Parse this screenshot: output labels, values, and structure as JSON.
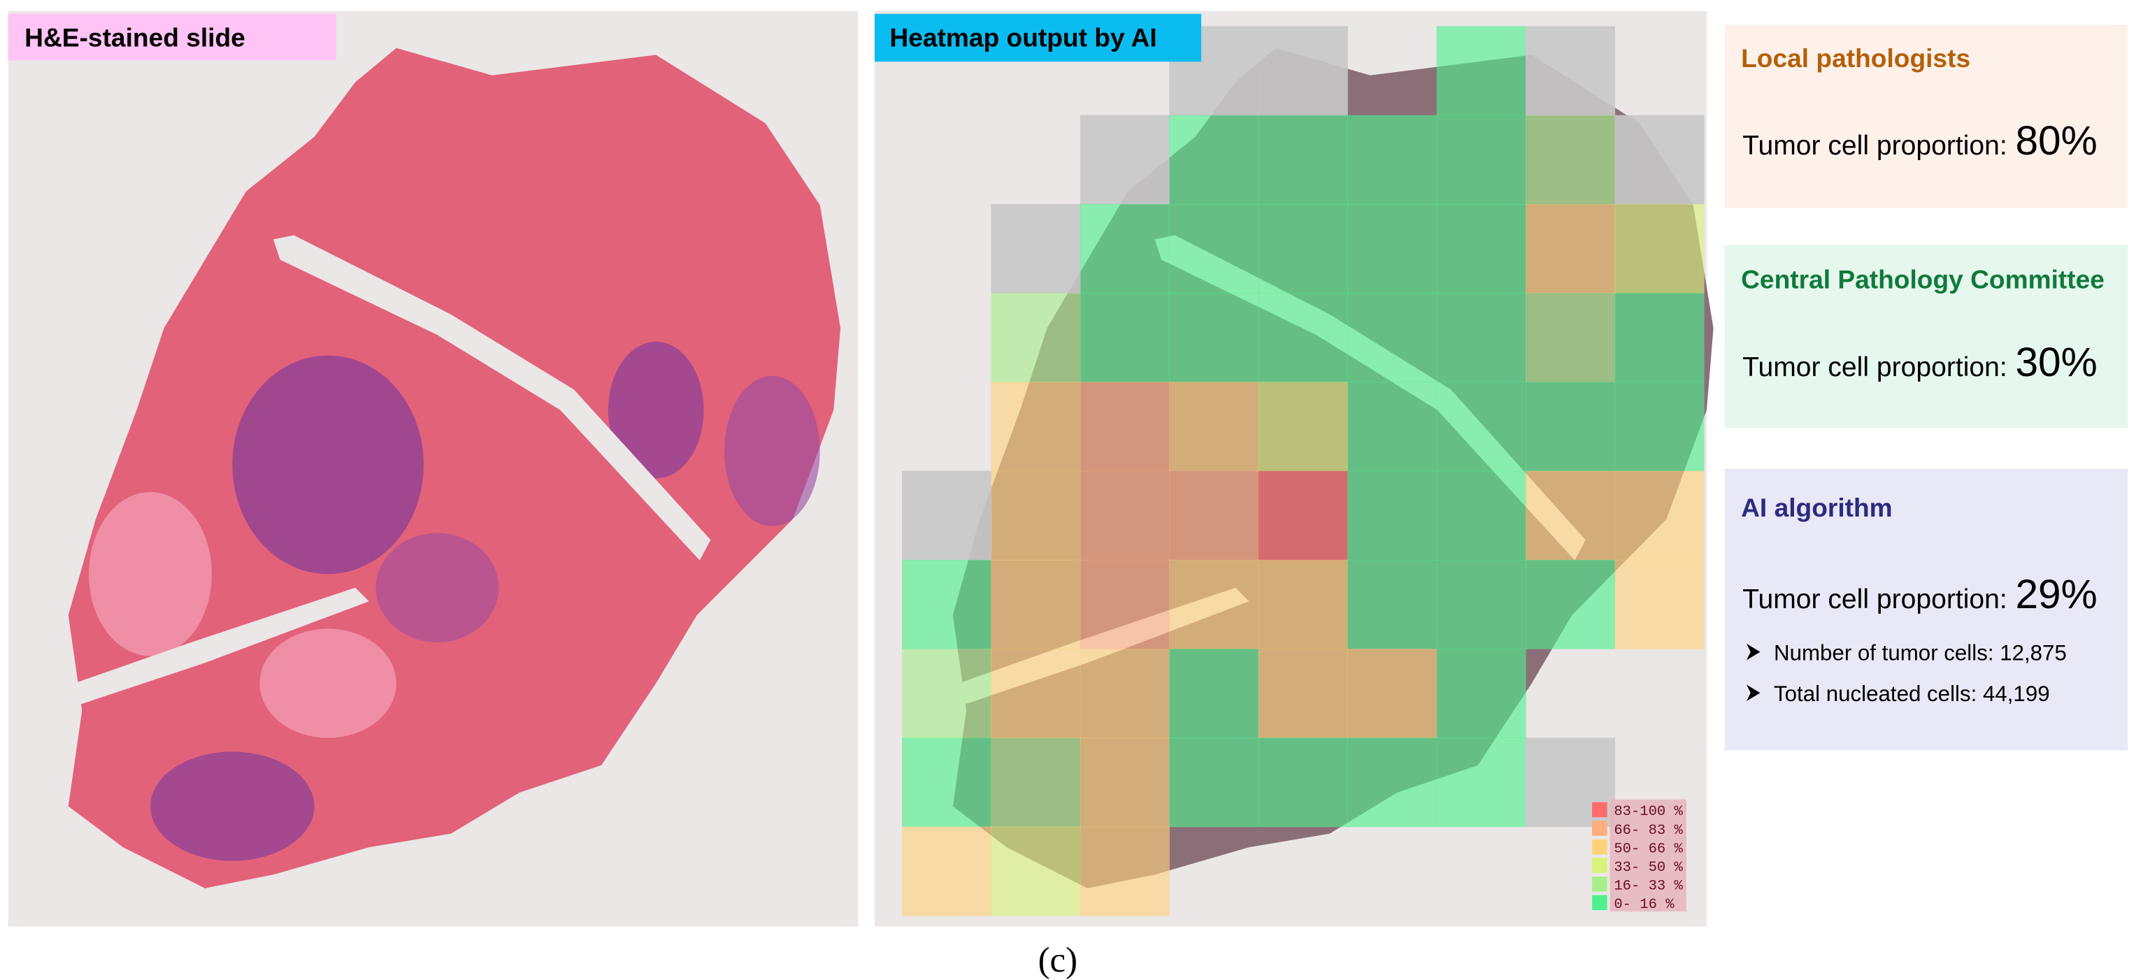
{
  "panels": [
    {
      "label": "H&E-stained slide"
    },
    {
      "label": "Heatmap output by AI"
    }
  ],
  "legend": [
    "83-100 %",
    "66- 83 %",
    "50- 66 %",
    "33- 50 %",
    "16- 33 %",
    "0- 16 %"
  ],
  "boxes": [
    {
      "title": "Local pathologists",
      "proportion_label": "Tumor cell proportion:",
      "proportion": "80%"
    },
    {
      "title": "Central Pathology Committee",
      "proportion_label": "Tumor cell proportion:",
      "proportion": "30%"
    },
    {
      "title": "AI algorithm",
      "proportion_label": "Tumor cell proportion:",
      "proportion": "29%",
      "details": [
        "Number of tumor cells: 12,875",
        "Total nucleated cells: 44,199"
      ]
    }
  ],
  "caption": "(c)"
}
